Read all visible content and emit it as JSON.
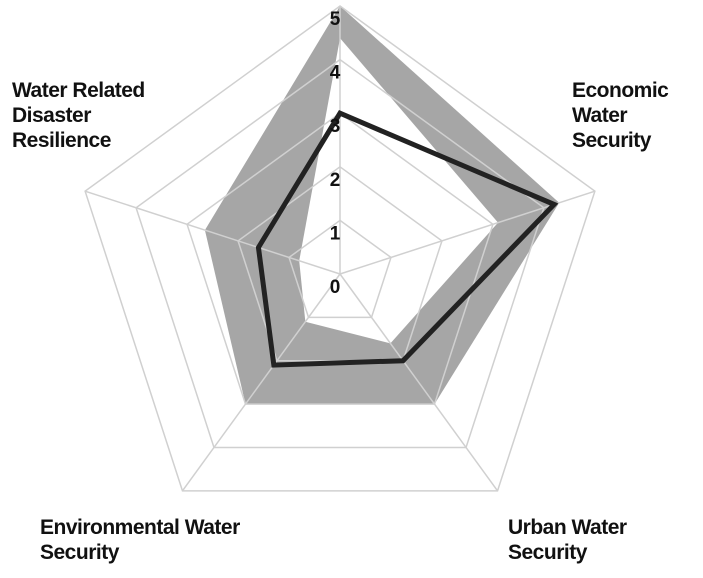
{
  "chart_data": {
    "type": "radar",
    "categories": [
      null,
      "Economic Water Security",
      "Urban Water Security",
      "Environmental Water Security",
      "Water Related Disaster Resilience"
    ],
    "series": [
      {
        "color": "#a6a6a6",
        "values": [
          5,
          4.3,
          3,
          3,
          2.65
        ]
      },
      {
        "color": "#ffffff",
        "values": [
          4.4,
          3.1,
          1.6,
          1.1,
          0.8
        ]
      },
      {
        "color": "#222222",
        "values": [
          3,
          4.2,
          2,
          2.1,
          1.6
        ]
      }
    ],
    "ylim": [
      0,
      5
    ],
    "yticks": [
      0,
      1,
      2,
      3,
      4,
      5
    ],
    "grid": true
  }
}
